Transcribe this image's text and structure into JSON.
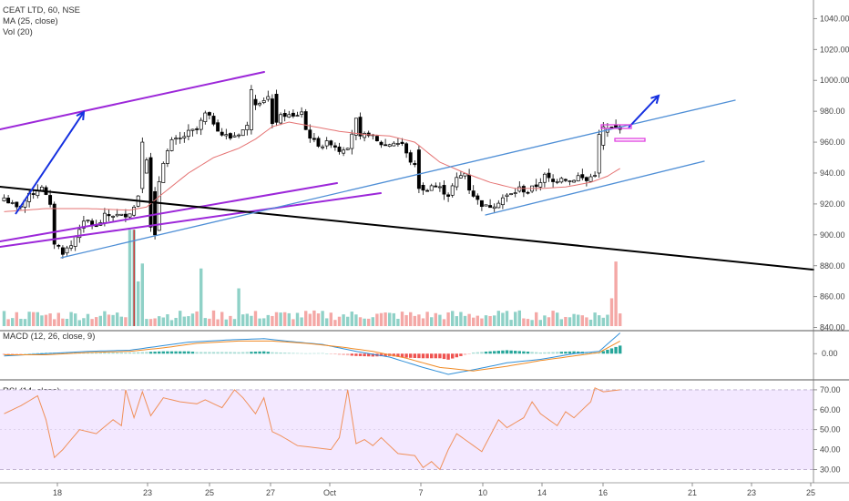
{
  "legends": {
    "symbol": "CEAT LTD, 60, NSE",
    "ma": "MA (25, close)",
    "vol": "Vol (20)",
    "macd": "MACD (12, 26, close, 9)",
    "rsi": "RSI (14, close)"
  },
  "colors": {
    "up": "#26a69a",
    "down": "#ef5350",
    "candle": "#000000",
    "ma": "#e57373",
    "vol_up": "#8fd1c7",
    "vol_down": "#f4a8a6",
    "macd_line": "#2f8fd8",
    "signal_line": "#f08a24",
    "rsi_line": "#f0905a",
    "rsi_band": "#f3e8ff",
    "trend_blue": "#4f8fd6",
    "trend_purple": "#9c27d9",
    "trend_black": "#000000",
    "arrow": "#1530e0",
    "box_pink": "#e040e0"
  },
  "chart_data": {
    "type": "candlestick",
    "x_ticks": [
      "18",
      "23",
      "25",
      "27",
      "Oct",
      "7",
      "10",
      "14",
      "16",
      "21",
      "23",
      "25"
    ],
    "price_axis": {
      "ticks": [
        840,
        860,
        880,
        900,
        920,
        940,
        960,
        980,
        1000,
        1020,
        1040
      ],
      "ylim": [
        838,
        1052
      ]
    },
    "macd_axis": {
      "ticks": [
        "0.00"
      ],
      "ylim": [
        -22,
        20
      ]
    },
    "rsi_axis": {
      "ticks": [
        "30.00",
        "40.00",
        "50.00",
        "60.00",
        "70.00"
      ],
      "ylim": [
        27,
        75
      ],
      "band": [
        30,
        70
      ]
    },
    "price_keypoints": [
      [
        0,
        924
      ],
      [
        3,
        917
      ],
      [
        6,
        925
      ],
      [
        9,
        932
      ],
      [
        11,
        918
      ],
      [
        12,
        895
      ],
      [
        14,
        889
      ],
      [
        16,
        893
      ],
      [
        18,
        905
      ],
      [
        20,
        909
      ],
      [
        22,
        905
      ],
      [
        24,
        912
      ],
      [
        26,
        913
      ],
      [
        28,
        912
      ],
      [
        30,
        915
      ],
      [
        31,
        918
      ],
      [
        32,
        926
      ],
      [
        33,
        942
      ],
      [
        34,
        950
      ],
      [
        35,
        928
      ],
      [
        36,
        902
      ],
      [
        37,
        935
      ],
      [
        38,
        948
      ],
      [
        40,
        960
      ],
      [
        42,
        962
      ],
      [
        44,
        966
      ],
      [
        46,
        968
      ],
      [
        48,
        978
      ],
      [
        50,
        973
      ],
      [
        52,
        965
      ],
      [
        54,
        963
      ],
      [
        56,
        966
      ],
      [
        58,
        970
      ],
      [
        59,
        990
      ],
      [
        60,
        986
      ],
      [
        62,
        988
      ],
      [
        64,
        990
      ],
      [
        65,
        974
      ],
      [
        67,
        978
      ],
      [
        69,
        976
      ],
      [
        71,
        980
      ],
      [
        72,
        968
      ],
      [
        74,
        960
      ],
      [
        76,
        958
      ],
      [
        78,
        960
      ],
      [
        80,
        955
      ],
      [
        82,
        958
      ],
      [
        84,
        974
      ],
      [
        85,
        962
      ],
      [
        87,
        966
      ],
      [
        89,
        960
      ],
      [
        91,
        958
      ],
      [
        93,
        960
      ],
      [
        95,
        959
      ],
      [
        96,
        952
      ],
      [
        98,
        944
      ],
      [
        99,
        934
      ],
      [
        100,
        928
      ],
      [
        102,
        932
      ],
      [
        104,
        930
      ],
      [
        106,
        926
      ],
      [
        108,
        936
      ],
      [
        110,
        940
      ],
      [
        111,
        930
      ],
      [
        113,
        922
      ],
      [
        115,
        918
      ],
      [
        117,
        920
      ],
      [
        119,
        924
      ],
      [
        121,
        926
      ],
      [
        123,
        930
      ],
      [
        125,
        928
      ],
      [
        127,
        932
      ],
      [
        129,
        938
      ],
      [
        131,
        934
      ],
      [
        133,
        938
      ],
      [
        135,
        935
      ],
      [
        137,
        938
      ],
      [
        139,
        935
      ],
      [
        141,
        940
      ],
      [
        142,
        958
      ],
      [
        143,
        966
      ],
      [
        144,
        968
      ],
      [
        145,
        969
      ],
      [
        146,
        969
      ],
      [
        147,
        970
      ]
    ],
    "ma_keypoints": [
      [
        0,
        915
      ],
      [
        10,
        917
      ],
      [
        20,
        917
      ],
      [
        30,
        916
      ],
      [
        34,
        918
      ],
      [
        38,
        927
      ],
      [
        44,
        940
      ],
      [
        50,
        950
      ],
      [
        56,
        956
      ],
      [
        60,
        962
      ],
      [
        64,
        970
      ],
      [
        68,
        973
      ],
      [
        74,
        970
      ],
      [
        80,
        967
      ],
      [
        86,
        965
      ],
      [
        92,
        964
      ],
      [
        98,
        960
      ],
      [
        104,
        947
      ],
      [
        110,
        940
      ],
      [
        116,
        934
      ],
      [
        122,
        930
      ],
      [
        128,
        930
      ],
      [
        134,
        931
      ],
      [
        140,
        934
      ],
      [
        144,
        938
      ],
      [
        147,
        943
      ]
    ],
    "volume_spikes": [
      {
        "bar": 30,
        "value": 97
      },
      {
        "bar": 31,
        "value": 97
      },
      {
        "bar": 32,
        "value": 45
      },
      {
        "bar": 33,
        "value": 63
      },
      {
        "bar": 47,
        "value": 58
      },
      {
        "bar": 56,
        "value": 38
      },
      {
        "bar": 146,
        "value": 65
      },
      {
        "bar": 145,
        "value": 28
      }
    ],
    "macd_keypoints": [
      [
        0,
        -2
      ],
      [
        10,
        0
      ],
      [
        20,
        2
      ],
      [
        30,
        3
      ],
      [
        36,
        6
      ],
      [
        44,
        10
      ],
      [
        54,
        12
      ],
      [
        62,
        13
      ],
      [
        70,
        10
      ],
      [
        76,
        8
      ],
      [
        84,
        2
      ],
      [
        92,
        -3
      ],
      [
        100,
        -12
      ],
      [
        106,
        -18
      ],
      [
        112,
        -14
      ],
      [
        120,
        -8
      ],
      [
        128,
        -5
      ],
      [
        136,
        0
      ],
      [
        142,
        2
      ],
      [
        147,
        18
      ]
    ],
    "signal_keypoints": [
      [
        0,
        -1
      ],
      [
        10,
        -1
      ],
      [
        20,
        1
      ],
      [
        30,
        2
      ],
      [
        38,
        5
      ],
      [
        46,
        9
      ],
      [
        56,
        11
      ],
      [
        64,
        11
      ],
      [
        72,
        9
      ],
      [
        80,
        6
      ],
      [
        88,
        2
      ],
      [
        96,
        -4
      ],
      [
        104,
        -12
      ],
      [
        112,
        -15
      ],
      [
        120,
        -11
      ],
      [
        128,
        -6
      ],
      [
        136,
        -2
      ],
      [
        142,
        1
      ],
      [
        147,
        11
      ]
    ],
    "rsi_keypoints": [
      [
        0,
        58
      ],
      [
        4,
        62
      ],
      [
        8,
        67
      ],
      [
        10,
        55
      ],
      [
        12,
        36
      ],
      [
        14,
        40
      ],
      [
        18,
        50
      ],
      [
        22,
        48
      ],
      [
        26,
        55
      ],
      [
        28,
        52
      ],
      [
        29,
        70
      ],
      [
        31,
        56
      ],
      [
        33,
        69
      ],
      [
        35,
        57
      ],
      [
        38,
        66
      ],
      [
        42,
        64
      ],
      [
        46,
        63
      ],
      [
        48,
        65
      ],
      [
        52,
        61
      ],
      [
        55,
        70
      ],
      [
        57,
        66
      ],
      [
        60,
        58
      ],
      [
        62,
        66
      ],
      [
        64,
        49
      ],
      [
        66,
        47
      ],
      [
        70,
        42
      ],
      [
        74,
        41
      ],
      [
        78,
        40
      ],
      [
        80,
        46
      ],
      [
        82,
        70
      ],
      [
        84,
        43
      ],
      [
        86,
        45
      ],
      [
        88,
        42
      ],
      [
        90,
        46
      ],
      [
        94,
        38
      ],
      [
        98,
        37
      ],
      [
        100,
        31
      ],
      [
        102,
        34
      ],
      [
        104,
        30
      ],
      [
        106,
        40
      ],
      [
        108,
        48
      ],
      [
        112,
        42
      ],
      [
        114,
        39
      ],
      [
        116,
        47
      ],
      [
        118,
        55
      ],
      [
        120,
        51
      ],
      [
        124,
        56
      ],
      [
        126,
        64
      ],
      [
        128,
        58
      ],
      [
        132,
        52
      ],
      [
        134,
        59
      ],
      [
        136,
        56
      ],
      [
        138,
        60
      ],
      [
        140,
        64
      ],
      [
        141,
        71
      ],
      [
        143,
        69
      ],
      [
        147,
        70
      ]
    ]
  }
}
